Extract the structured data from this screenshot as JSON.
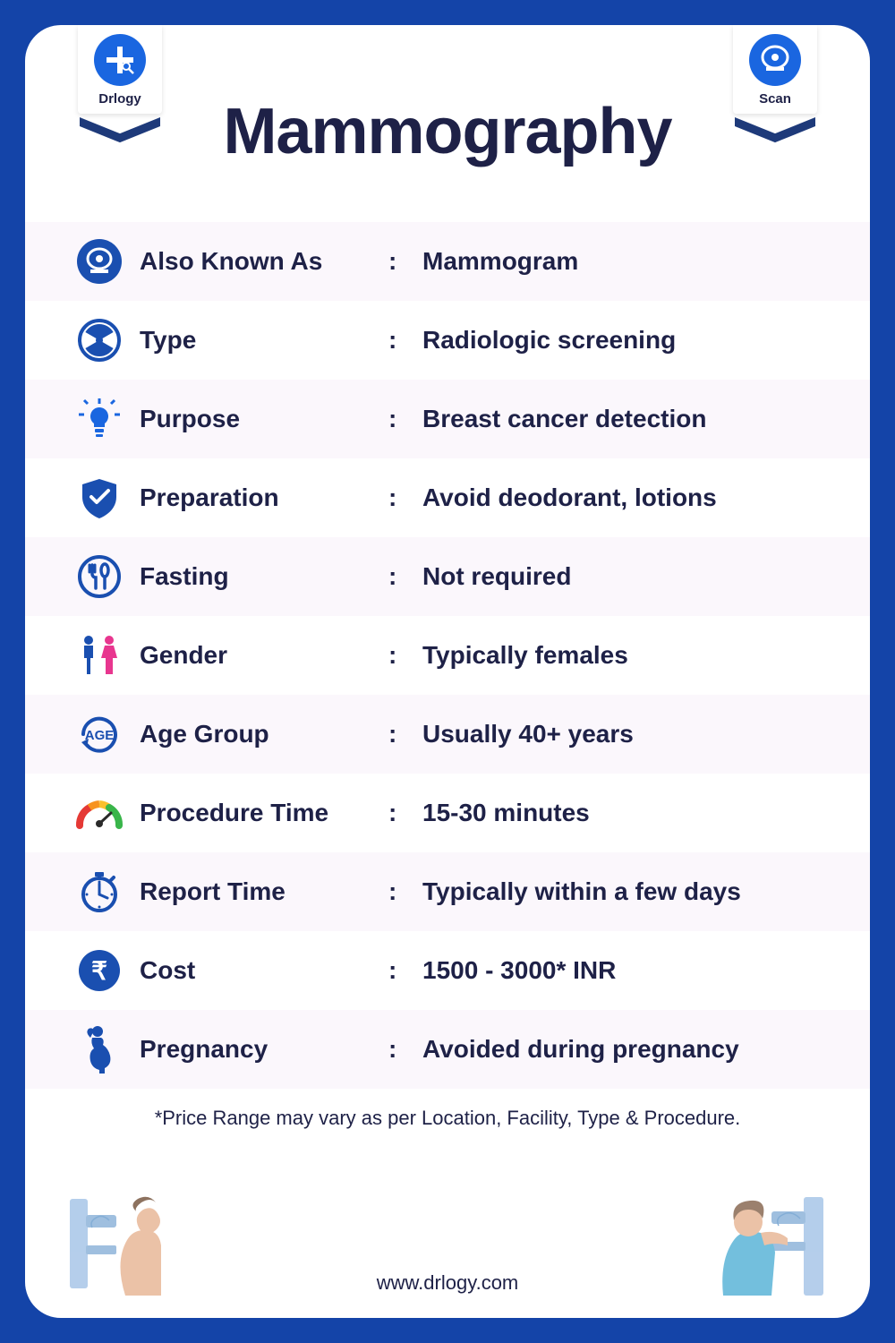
{
  "title": "Mammography",
  "badges": {
    "left": {
      "label": "Drlogy"
    },
    "right": {
      "label": "Scan"
    }
  },
  "colors": {
    "frame": "#1444a8",
    "text": "#1e2147",
    "iconBlue": "#1a4fb0",
    "iconBrightBlue": "#1a66e0",
    "altRow": "#fbf7fc",
    "pink": "#e8368f",
    "green": "#39b54a",
    "orange": "#f7931e",
    "red": "#e53935",
    "yellow": "#fbc02d"
  },
  "rows": [
    {
      "icon": "scan",
      "label": "Also Known As",
      "value": "Mammogram"
    },
    {
      "icon": "radiation",
      "label": "Type",
      "value": "Radiologic screening"
    },
    {
      "icon": "bulb",
      "label": "Purpose",
      "value": "Breast cancer detection"
    },
    {
      "icon": "shield",
      "label": "Preparation",
      "value": "Avoid deodorant, lotions"
    },
    {
      "icon": "utensils",
      "label": "Fasting",
      "value": "Not required"
    },
    {
      "icon": "gender",
      "label": "Gender",
      "value": "Typically females"
    },
    {
      "icon": "age",
      "label": "Age Group",
      "value": "Usually 40+ years"
    },
    {
      "icon": "gauge",
      "label": "Procedure Time",
      "value": "15-30 minutes"
    },
    {
      "icon": "stopwatch",
      "label": "Report Time",
      "value": "Typically within a few days"
    },
    {
      "icon": "rupee",
      "label": "Cost",
      "value": "1500 - 3000* INR"
    },
    {
      "icon": "pregnancy",
      "label": "Pregnancy",
      "value": "Avoided during pregnancy"
    }
  ],
  "footnote": "*Price Range may vary as per Location, Facility, Type & Procedure.",
  "website": "www.drlogy.com"
}
